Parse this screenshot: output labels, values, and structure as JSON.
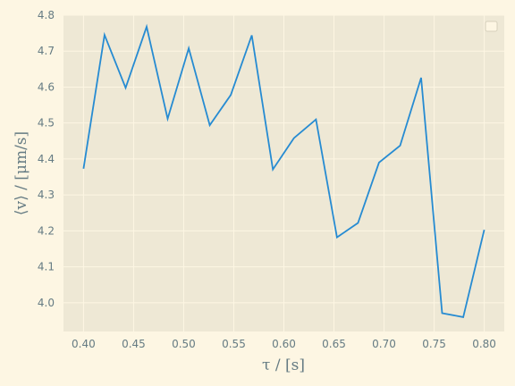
{
  "chart_data": {
    "type": "line",
    "xlabel": "τ / [s]",
    "ylabel": "⟨v⟩ / [μm/s]",
    "xlim": [
      0.38,
      0.82
    ],
    "ylim": [
      3.92,
      4.8
    ],
    "xticks": [
      0.4,
      0.45,
      0.5,
      0.55,
      0.6,
      0.65,
      0.7,
      0.75,
      0.8
    ],
    "xtick_labels": [
      "0.40",
      "0.45",
      "0.50",
      "0.55",
      "0.60",
      "0.65",
      "0.70",
      "0.75",
      "0.80"
    ],
    "yticks": [
      4.0,
      4.1,
      4.2,
      4.3,
      4.4,
      4.5,
      4.6,
      4.7,
      4.8
    ],
    "ytick_labels": [
      "4.0",
      "4.1",
      "4.2",
      "4.3",
      "4.4",
      "4.5",
      "4.6",
      "4.7",
      "4.8"
    ],
    "grid": true,
    "legend": "top-right (empty)",
    "series": [
      {
        "color": "#268bd2",
        "x": [
          0.4,
          0.421,
          0.442,
          0.463,
          0.484,
          0.505,
          0.526,
          0.547,
          0.568,
          0.589,
          0.61,
          0.632,
          0.653,
          0.674,
          0.695,
          0.716,
          0.737,
          0.758,
          0.779,
          0.8
        ],
        "y": [
          4.373,
          4.745,
          4.598,
          4.768,
          4.512,
          4.708,
          4.494,
          4.578,
          4.744,
          4.371,
          4.458,
          4.51,
          4.182,
          4.222,
          4.39,
          4.437,
          4.626,
          3.971,
          3.96,
          4.203
        ]
      }
    ],
    "colors": {
      "background": "#fdf6e3",
      "plot_area": "#eee8d5",
      "grid": "#fdf6e3",
      "text": "#657b83"
    }
  }
}
